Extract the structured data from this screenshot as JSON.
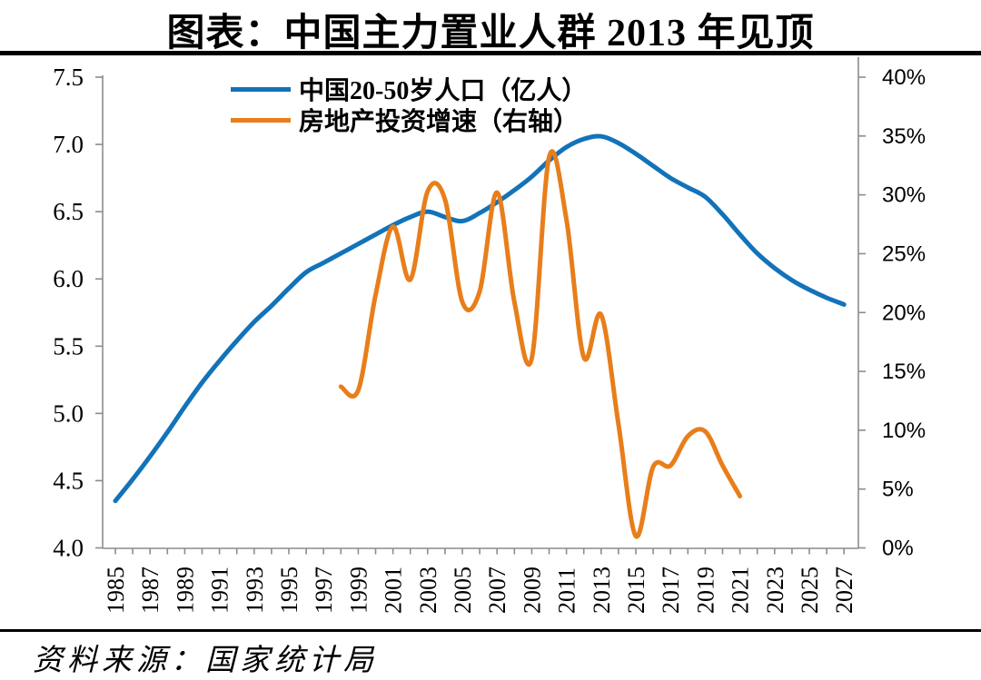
{
  "title": "图表：中国主力置业人群 2013 年见顶",
  "source": "资料来源：国家统计局",
  "legend": [
    {
      "label": "中国20-50岁人口（亿人）",
      "color": "#1273B9"
    },
    {
      "label": "房地产投资增速（右轴）",
      "color": "#E87E1B"
    }
  ],
  "colors": {
    "population_line": "#1273B9",
    "investment_line": "#E87E1B",
    "axis": "#8C8C8C",
    "text": "#000000",
    "rule": "#000000"
  },
  "chart_data": {
    "type": "line",
    "title": "图表：中国主力置业人群 2013 年见顶",
    "grid": "off",
    "legend_position": "top-center",
    "x_axis": {
      "start": 1985,
      "end": 2027,
      "minor_tick_step": 1,
      "label_step": 2,
      "labels": [
        "1985",
        "1987",
        "1989",
        "1991",
        "1993",
        "1995",
        "1997",
        "1999",
        "2001",
        "2003",
        "2005",
        "2007",
        "2009",
        "2011",
        "2013",
        "2015",
        "2017",
        "2019",
        "2021",
        "2023",
        "2025",
        "2027"
      ]
    },
    "left_axis": {
      "min": 4.0,
      "max": 7.5,
      "ticks": [
        "7.5",
        "7.0",
        "6.5",
        "6.0",
        "5.5",
        "5.0",
        "4.5",
        "4.0"
      ],
      "tick_values": [
        7.5,
        7.0,
        6.5,
        6.0,
        5.5,
        5.0,
        4.5,
        4.0
      ]
    },
    "right_axis": {
      "min": 0,
      "max": 40,
      "ticks": [
        "40%",
        "35%",
        "30%",
        "25%",
        "20%",
        "15%",
        "10%",
        "5%",
        "0%"
      ],
      "tick_values": [
        40,
        35,
        30,
        25,
        20,
        15,
        10,
        5,
        0
      ]
    },
    "series": [
      {
        "name": "中国20-50岁人口（亿人）",
        "axis": "left",
        "color": "#1273B9",
        "x_start": 1985,
        "x": [
          1985,
          1986,
          1987,
          1988,
          1989,
          1990,
          1991,
          1992,
          1993,
          1994,
          1995,
          1996,
          1997,
          1998,
          1999,
          2000,
          2001,
          2002,
          2003,
          2004,
          2005,
          2006,
          2007,
          2008,
          2009,
          2010,
          2011,
          2012,
          2013,
          2014,
          2015,
          2016,
          2017,
          2018,
          2019,
          2020,
          2021,
          2022,
          2023,
          2024,
          2025,
          2026,
          2027
        ],
        "values": [
          4.35,
          4.51,
          4.68,
          4.86,
          5.05,
          5.23,
          5.39,
          5.54,
          5.68,
          5.8,
          5.93,
          6.05,
          6.12,
          6.19,
          6.26,
          6.33,
          6.4,
          6.46,
          6.5,
          6.46,
          6.43,
          6.49,
          6.57,
          6.66,
          6.76,
          6.88,
          6.98,
          7.04,
          7.06,
          7.01,
          6.93,
          6.84,
          6.75,
          6.68,
          6.61,
          6.48,
          6.33,
          6.19,
          6.08,
          5.99,
          5.92,
          5.86,
          5.81
        ]
      },
      {
        "name": "房地产投资增速（右轴）",
        "axis": "right",
        "color": "#E87E1B",
        "x_start": 1998,
        "x": [
          1998,
          1999,
          2000,
          2001,
          2002,
          2003,
          2004,
          2005,
          2006,
          2007,
          2008,
          2009,
          2010,
          2011,
          2012,
          2013,
          2014,
          2015,
          2016,
          2017,
          2018,
          2019,
          2020,
          2021
        ],
        "values": [
          13.7,
          13.4,
          21.5,
          27.3,
          22.8,
          30.3,
          29.6,
          20.9,
          21.8,
          30.2,
          20.9,
          16.1,
          33.2,
          27.9,
          16.2,
          19.8,
          10.5,
          1.0,
          6.9,
          7.0,
          9.5,
          9.9,
          7.0,
          4.4
        ]
      }
    ]
  }
}
